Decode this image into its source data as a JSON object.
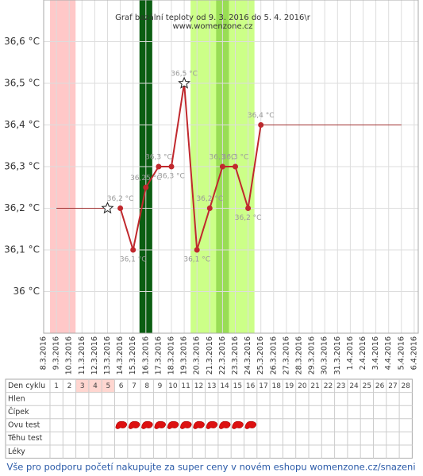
{
  "chart_data": {
    "type": "line",
    "title": "Graf bazální teploty od 9. 3. 2016 do 5. 4. 2016\\r",
    "subtitle": "www.womenzone.cz",
    "x": [
      "8.3.2016",
      "9.3.2016",
      "10.3.2016",
      "11.3.2016",
      "12.3.2016",
      "13.3.2016",
      "14.3.2016",
      "15.3.2016",
      "16.3.2016",
      "17.3.2016",
      "18.3.2016",
      "19.3.2016",
      "20.3.2016",
      "21.3.2016",
      "22.3.2016",
      "23.3.2016",
      "24.3.2016",
      "25.3.2016",
      "26.3.2016",
      "27.3.2016",
      "28.3.2016",
      "29.3.2016",
      "30.3.2016",
      "31.3.2016",
      "1.4.2016",
      "2.4.2016",
      "3.4.2016",
      "4.4.2016",
      "5.4.2016",
      "6.4.2016"
    ],
    "series": [
      {
        "color": "#c0282d",
        "marker": "circle",
        "values": [
          null,
          null,
          null,
          null,
          null,
          null,
          36.2,
          36.1,
          36.25,
          36.3,
          36.3,
          36.5,
          36.1,
          36.2,
          36.3,
          36.3,
          36.2,
          36.4,
          null,
          null,
          null,
          null,
          null,
          null,
          null,
          null,
          null,
          null,
          null,
          null
        ],
        "value_labels": [
          null,
          null,
          null,
          null,
          null,
          null,
          "36,2 °C",
          "36,1 °C",
          "36,25 °C",
          "36,3 °C",
          "36,3 °C",
          "36,5 °C",
          "36,1 °C",
          "36,2 °C",
          "36,3 °C",
          "36,3 °C",
          "36,2 °C",
          "36,4 °C",
          null,
          null,
          null,
          null,
          null,
          null,
          null,
          null,
          null,
          null,
          null,
          null
        ]
      },
      {
        "color": "#a03030",
        "marker": "none",
        "values": [
          null,
          36.2,
          36.2,
          36.2,
          36.2,
          36.2,
          null,
          null,
          null,
          null,
          null,
          null,
          null,
          null,
          null,
          null,
          null,
          36.4,
          36.4,
          36.4,
          36.4,
          36.4,
          36.4,
          36.4,
          36.4,
          36.4,
          36.4,
          36.4,
          36.4,
          null
        ]
      },
      {
        "color": "#ffffff",
        "marker": "star",
        "values": [
          null,
          null,
          null,
          null,
          null,
          36.2,
          null,
          null,
          null,
          null,
          null,
          36.5,
          null,
          null,
          null,
          null,
          null,
          null,
          null,
          null,
          null,
          null,
          null,
          null,
          null,
          null,
          null,
          null,
          null,
          null
        ]
      }
    ],
    "bands": [
      {
        "from": "9.3.2016",
        "to": "10.3.2016",
        "color": "#ffc8c8"
      },
      {
        "from": "16.3.2016",
        "to": "16.3.2016",
        "color": "#0b5e12"
      },
      {
        "from": "20.3.2016",
        "to": "24.3.2016",
        "color": "#ccff88"
      },
      {
        "from": "22.3.2016",
        "to": "22.3.2016",
        "color": "#99dd55"
      }
    ],
    "ylim": [
      35.9,
      36.7
    ],
    "yticks": [
      {
        "value": 36,
        "label": "36 °C"
      },
      {
        "value": 36.1,
        "label": "36,1 °C"
      },
      {
        "value": 36.2,
        "label": "36,2 °C"
      },
      {
        "value": 36.3,
        "label": "36,3 °C"
      },
      {
        "value": 36.4,
        "label": "36,4 °C"
      },
      {
        "value": 36.5,
        "label": "36,5 °C"
      },
      {
        "value": 36.6,
        "label": "36,6 °C"
      }
    ],
    "grid": true
  },
  "table": {
    "row_labels": [
      "Den cyklu",
      "Hlen",
      "Čípek",
      "Ovu test",
      "Těhu test",
      "Léky"
    ],
    "days": [
      1,
      2,
      3,
      4,
      5,
      6,
      7,
      8,
      9,
      10,
      11,
      12,
      13,
      14,
      15,
      16,
      17,
      18,
      19,
      20,
      21,
      22,
      23,
      24,
      25,
      26,
      27,
      28
    ],
    "highlight_days": [
      3,
      4,
      5
    ],
    "ovu_test_days": [
      6,
      7,
      8,
      9,
      10,
      11,
      12,
      13,
      14,
      15,
      16
    ]
  },
  "footer": "Vše pro podporu početí nakupujte za super ceny v novém eshopu womenzone.cz/snazeni"
}
